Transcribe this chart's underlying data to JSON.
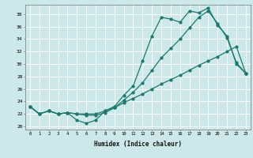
{
  "xlabel": "Humidex (Indice chaleur)",
  "bg_color": "#cce8e8",
  "grid_color": "#ffffff",
  "line_color": "#1a7a6e",
  "xlim": [
    -0.5,
    23.5
  ],
  "ylim": [
    19.5,
    39.5
  ],
  "xticks": [
    0,
    1,
    2,
    3,
    4,
    5,
    6,
    7,
    8,
    9,
    10,
    11,
    12,
    13,
    14,
    15,
    16,
    17,
    18,
    19,
    20,
    21,
    22,
    23
  ],
  "yticks": [
    20,
    22,
    24,
    26,
    28,
    30,
    32,
    34,
    36,
    38
  ],
  "line1_x": [
    0,
    1,
    2,
    3,
    4,
    5,
    6,
    7,
    8,
    9,
    10,
    11,
    12,
    13,
    14,
    15,
    16,
    17,
    18,
    19,
    20,
    21,
    22,
    23
  ],
  "line1_y": [
    23.2,
    22.0,
    22.5,
    22.0,
    22.2,
    21.0,
    20.5,
    21.0,
    22.5,
    23.2,
    25.0,
    26.5,
    30.5,
    34.5,
    37.5,
    37.2,
    36.7,
    38.5,
    38.2,
    39.0,
    36.2,
    34.5,
    30.0,
    28.5
  ],
  "line2_x": [
    0,
    1,
    2,
    3,
    4,
    5,
    6,
    7,
    8,
    9,
    10,
    11,
    12,
    13,
    14,
    15,
    16,
    17,
    18,
    19,
    20,
    21,
    22,
    23
  ],
  "line2_y": [
    23.2,
    22.0,
    22.5,
    22.0,
    22.2,
    22.0,
    21.8,
    21.8,
    22.2,
    23.0,
    24.2,
    25.5,
    27.0,
    29.0,
    31.0,
    32.5,
    34.0,
    35.8,
    37.5,
    38.5,
    36.5,
    34.2,
    30.2,
    28.5
  ],
  "line3_x": [
    0,
    1,
    2,
    3,
    4,
    5,
    6,
    7,
    8,
    9,
    10,
    11,
    12,
    13,
    14,
    15,
    16,
    17,
    18,
    19,
    20,
    21,
    22,
    23
  ],
  "line3_y": [
    23.2,
    22.0,
    22.5,
    22.0,
    22.2,
    22.0,
    22.0,
    22.0,
    22.5,
    23.0,
    23.8,
    24.5,
    25.2,
    26.0,
    26.8,
    27.5,
    28.2,
    29.0,
    29.8,
    30.5,
    31.2,
    32.0,
    32.8,
    28.5
  ]
}
